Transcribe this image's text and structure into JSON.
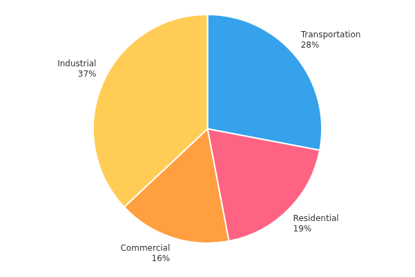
{
  "chart_data": {
    "type": "pie",
    "categories": [
      "Transportation",
      "Residential",
      "Commercial",
      "Industrial"
    ],
    "values": [
      28,
      19,
      16,
      37
    ],
    "value_labels": [
      "28%",
      "19%",
      "16%",
      "37%"
    ],
    "data_labels": true,
    "legend": false
  }
}
